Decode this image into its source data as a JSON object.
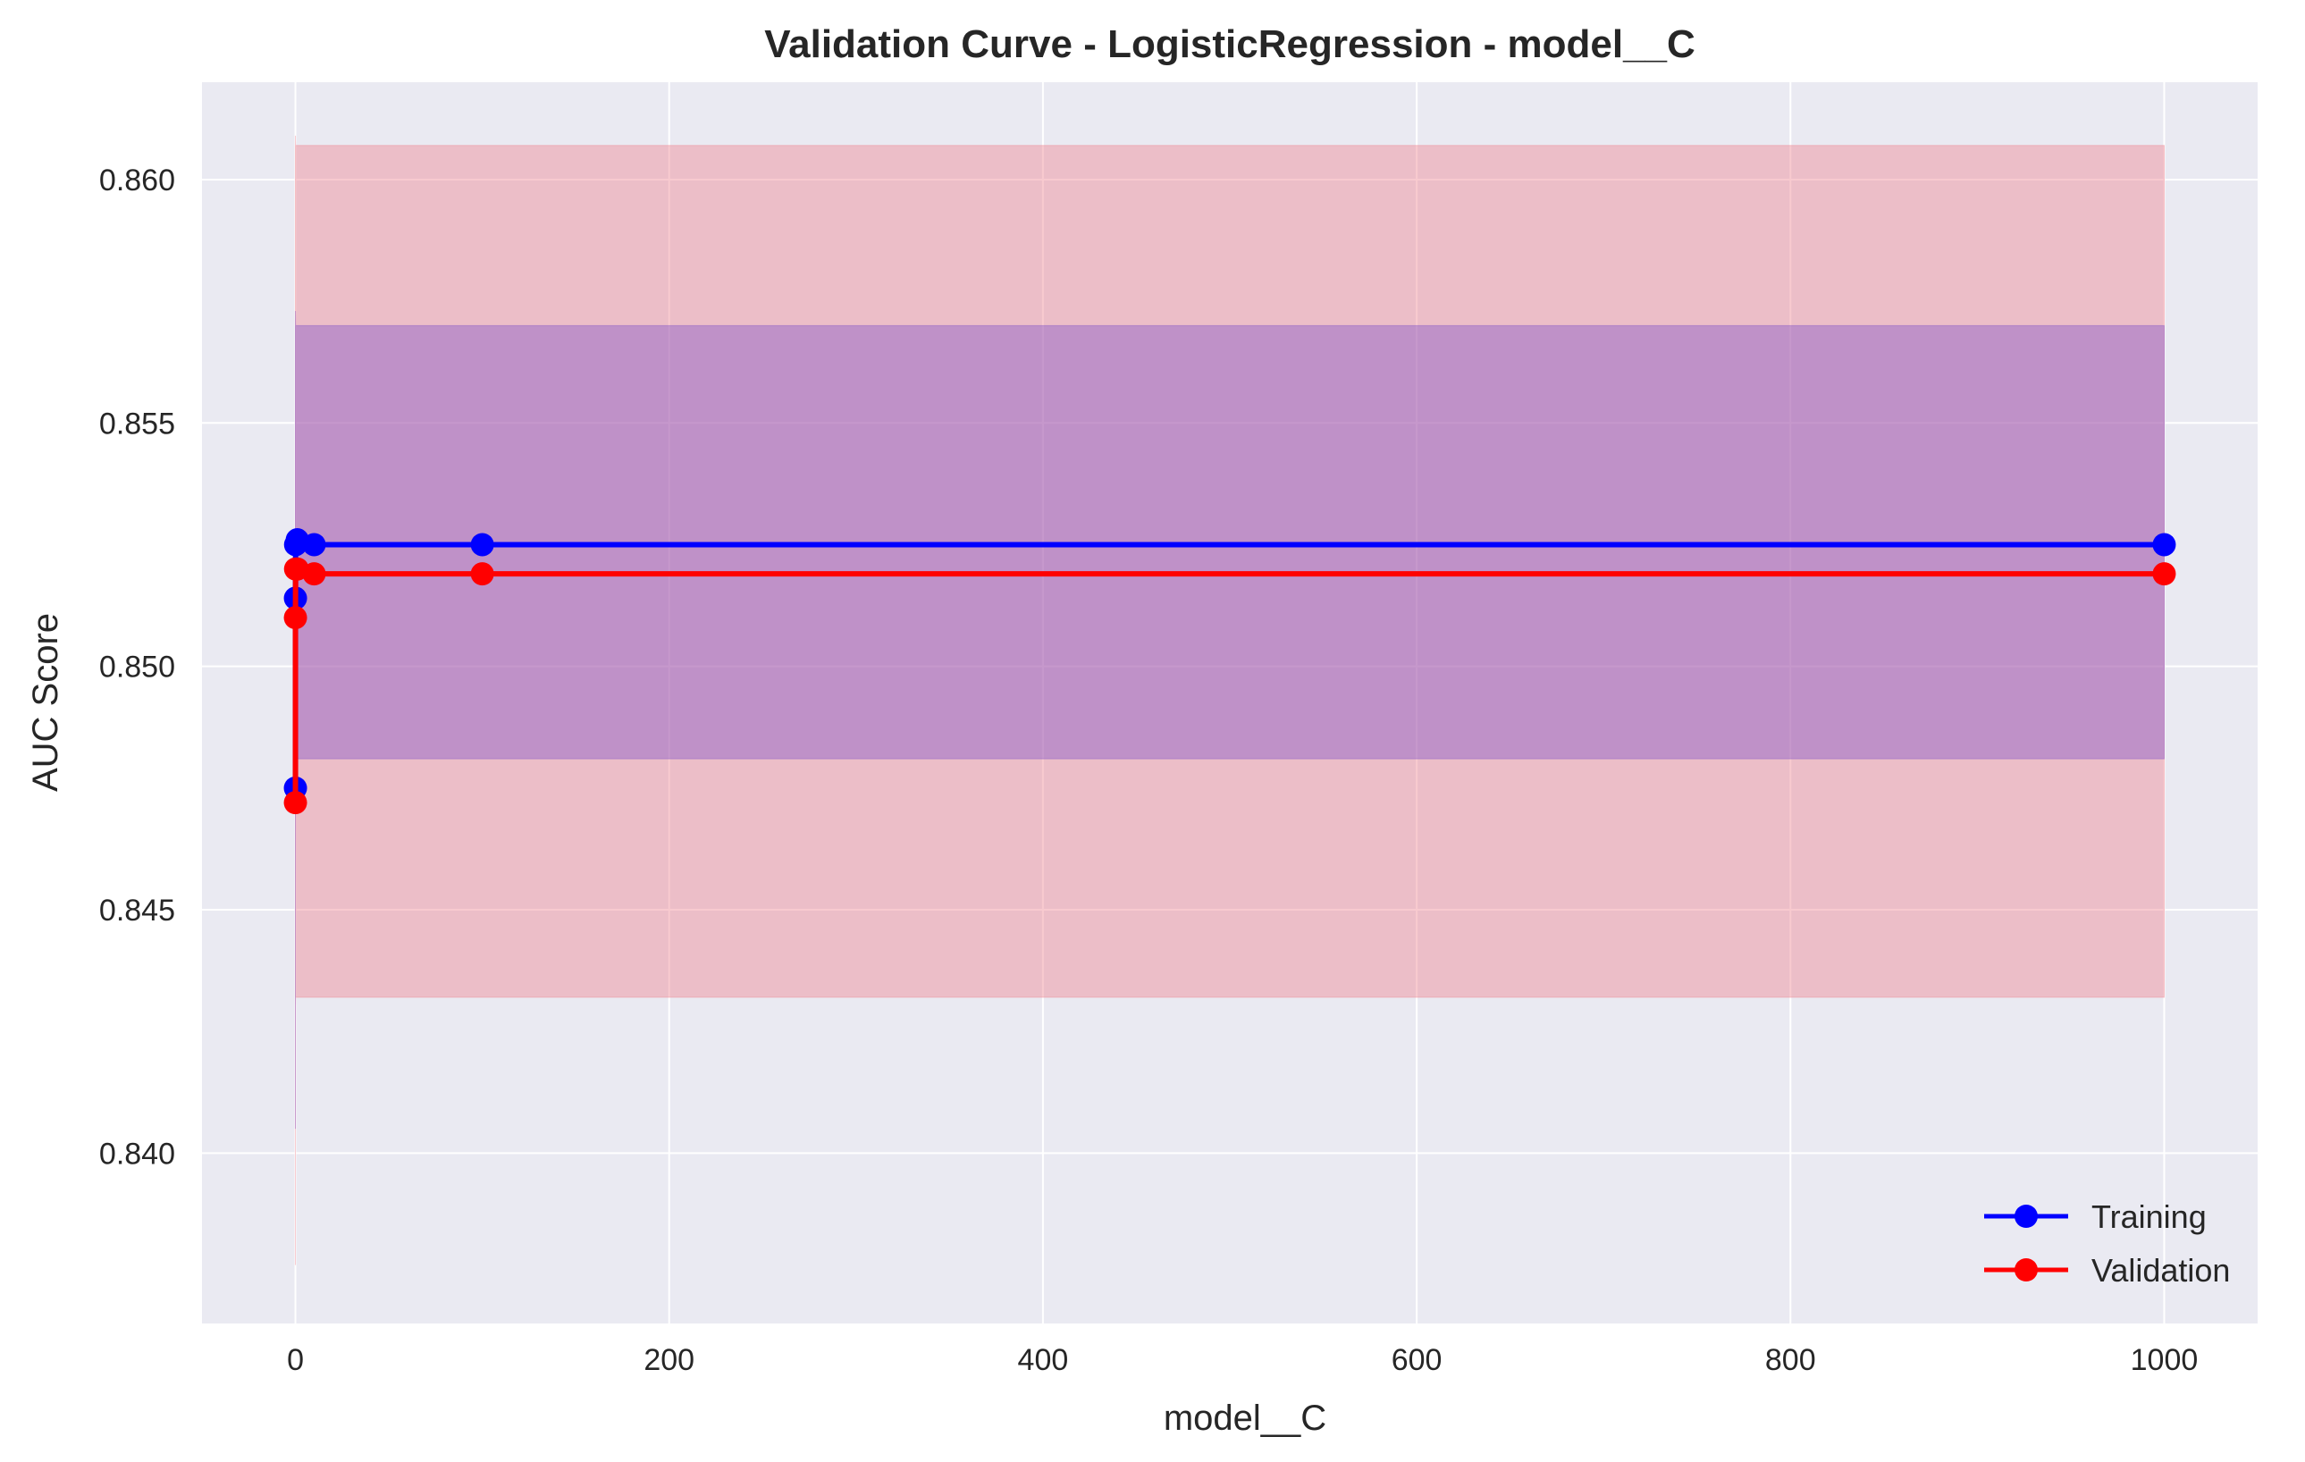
{
  "chart_data": {
    "type": "line",
    "title": "Validation Curve - LogisticRegression - model__C",
    "xlabel": "model__C",
    "ylabel": "AUC Score",
    "xlim": [
      -50,
      1050
    ],
    "ylim": [
      0.8365,
      0.862
    ],
    "xticks": [
      0,
      200,
      400,
      600,
      800,
      1000
    ],
    "yticks": [
      0.84,
      0.845,
      0.85,
      0.855,
      0.86
    ],
    "xtick_labels": [
      "0",
      "200",
      "400",
      "600",
      "800",
      "1000"
    ],
    "ytick_labels": [
      "0.840",
      "0.845",
      "0.850",
      "0.855",
      "0.860"
    ],
    "grid": true,
    "legend_position": "lower-right",
    "x": [
      0.001,
      0.01,
      0.1,
      1,
      10,
      100,
      1000
    ],
    "series": [
      {
        "name": "Training",
        "color": "#0000ff",
        "band_color": "#8a5ac8",
        "values": [
          0.8475,
          0.8514,
          0.8525,
          0.8526,
          0.8525,
          0.8525,
          0.8525
        ],
        "band_low": [
          0.8405,
          0.8455,
          0.848,
          0.8481,
          0.8481,
          0.8481,
          0.8481
        ],
        "band_high": [
          0.8545,
          0.8573,
          0.857,
          0.857,
          0.857,
          0.857,
          0.857
        ]
      },
      {
        "name": "Validation",
        "color": "#ff0000",
        "band_color": "#f08a95",
        "values": [
          0.8472,
          0.851,
          0.852,
          0.852,
          0.8519,
          0.8519,
          0.8519
        ],
        "band_low": [
          0.8377,
          0.843,
          0.8432,
          0.8432,
          0.8432,
          0.8432,
          0.8432
        ],
        "band_high": [
          0.8609,
          0.8608,
          0.8607,
          0.8607,
          0.8607,
          0.8607,
          0.8607
        ]
      }
    ]
  }
}
